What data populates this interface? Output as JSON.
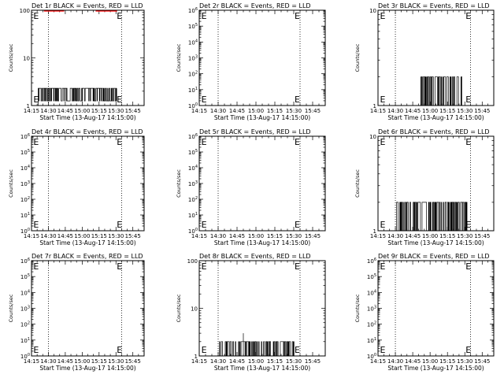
{
  "x_tick_labels": [
    "14:15",
    "14:30",
    "14:45",
    "15:00",
    "15:15",
    "15:30",
    "15:45"
  ],
  "x_axis_label": "Start Time (13-Aug-17 14:15:00)",
  "y_axis_label": "Counts/sec",
  "colors": {
    "events": "#000000",
    "lld": "#ff0000"
  },
  "chart_data": [
    {
      "type": "line",
      "title": "Det 1r BLACK = Events, RED = LLD",
      "ylim": [
        1,
        100
      ],
      "y_scale": "log",
      "y_tick_labels": [
        {
          "v": 1,
          "t": "1"
        },
        {
          "v": 10,
          "t": "10"
        },
        {
          "v": 100,
          "t": "100"
        }
      ],
      "xlim": [
        "14:15",
        "15:55"
      ],
      "markers": [
        {
          "label": "E",
          "x": "14:16"
        },
        {
          "label": "E",
          "x": "15:30"
        }
      ],
      "series": [
        {
          "name": "Events",
          "color": "#000000",
          "baseline": 1.25,
          "hi": 2.3,
          "x_start": "14:21",
          "x_end": "15:31",
          "pattern": "dense"
        },
        {
          "name": "LLD",
          "color": "#ff0000",
          "level": 96,
          "segments": [
            [
              "14:26",
              "14:44"
            ],
            [
              "15:12",
              "15:31"
            ]
          ]
        }
      ],
      "vlines": [
        "14:30",
        "15:35"
      ],
      "grid": true
    },
    {
      "type": "line",
      "title": "Det 2r BLACK = Events, RED = LLD",
      "ylim": [
        1,
        1000000
      ],
      "y_scale": "log",
      "y_tick_labels": [
        {
          "v": 1,
          "b": "10",
          "e": "0"
        },
        {
          "v": 10,
          "b": "10",
          "e": "1"
        },
        {
          "v": 100,
          "b": "10",
          "e": "2"
        },
        {
          "v": 1000,
          "b": "10",
          "e": "3"
        },
        {
          "v": 10000,
          "b": "10",
          "e": "4"
        },
        {
          "v": 100000,
          "b": "10",
          "e": "5"
        },
        {
          "v": 1000000,
          "b": "10",
          "e": "6"
        }
      ],
      "xlim": [
        "14:15",
        "15:55"
      ],
      "markers": [
        {
          "label": "E",
          "x": "14:16"
        },
        {
          "label": "E",
          "x": "15:30"
        }
      ],
      "series": [],
      "vlines": [
        "14:30",
        "15:35"
      ],
      "grid": true
    },
    {
      "type": "line",
      "title": "Det 3r BLACK = Events, RED = LLD",
      "ylim": [
        1,
        10
      ],
      "y_scale": "log",
      "y_tick_labels": [
        {
          "v": 1,
          "t": "1"
        },
        {
          "v": 10,
          "t": "10"
        }
      ],
      "xlim": [
        "14:15",
        "15:55"
      ],
      "markers": [
        {
          "label": "E",
          "x": "14:16"
        },
        {
          "label": "E",
          "x": "15:30"
        }
      ],
      "series": [
        {
          "name": "Events",
          "color": "#000000",
          "baseline": 1,
          "hi": 2,
          "x_start": "14:52",
          "x_end": "15:28",
          "pattern": "sparse"
        }
      ],
      "vlines": [
        "14:30",
        "15:35"
      ],
      "grid": true
    },
    {
      "type": "line",
      "title": "Det 4r BLACK = Events, RED = LLD",
      "ylim": [
        1,
        1000000
      ],
      "y_scale": "log",
      "y_tick_labels": [
        {
          "v": 1,
          "b": "10",
          "e": "0"
        },
        {
          "v": 10,
          "b": "10",
          "e": "1"
        },
        {
          "v": 100,
          "b": "10",
          "e": "2"
        },
        {
          "v": 1000,
          "b": "10",
          "e": "3"
        },
        {
          "v": 10000,
          "b": "10",
          "e": "4"
        },
        {
          "v": 100000,
          "b": "10",
          "e": "5"
        },
        {
          "v": 1000000,
          "b": "10",
          "e": "6"
        }
      ],
      "xlim": [
        "14:15",
        "15:55"
      ],
      "markers": [
        {
          "label": "E",
          "x": "14:16"
        },
        {
          "label": "E",
          "x": "15:30"
        }
      ],
      "series": [],
      "vlines": [
        "14:30",
        "15:35"
      ],
      "grid": true
    },
    {
      "type": "line",
      "title": "Det 5r BLACK = Events, RED = LLD",
      "ylim": [
        1,
        1000000
      ],
      "y_scale": "log",
      "y_tick_labels": [
        {
          "v": 1,
          "b": "10",
          "e": "0"
        },
        {
          "v": 10,
          "b": "10",
          "e": "1"
        },
        {
          "v": 100,
          "b": "10",
          "e": "2"
        },
        {
          "v": 1000,
          "b": "10",
          "e": "3"
        },
        {
          "v": 10000,
          "b": "10",
          "e": "4"
        },
        {
          "v": 100000,
          "b": "10",
          "e": "5"
        },
        {
          "v": 1000000,
          "b": "10",
          "e": "6"
        }
      ],
      "xlim": [
        "14:15",
        "15:55"
      ],
      "markers": [
        {
          "label": "E",
          "x": "14:16"
        },
        {
          "label": "E",
          "x": "15:30"
        }
      ],
      "series": [],
      "vlines": [
        "14:30",
        "15:35"
      ],
      "grid": true
    },
    {
      "type": "line",
      "title": "Det 6r BLACK = Events, RED = LLD",
      "ylim": [
        1,
        10
      ],
      "y_scale": "log",
      "y_tick_labels": [
        {
          "v": 1,
          "t": "1"
        },
        {
          "v": 10,
          "t": "10"
        }
      ],
      "xlim": [
        "14:15",
        "15:55"
      ],
      "markers": [
        {
          "label": "E",
          "x": "14:16"
        },
        {
          "label": "E",
          "x": "15:30"
        }
      ],
      "series": [
        {
          "name": "Events",
          "color": "#000000",
          "baseline": 1,
          "hi": 2,
          "x_start": "14:31",
          "x_end": "15:32",
          "pattern": "sparse"
        }
      ],
      "vlines": [
        "14:30",
        "15:35"
      ],
      "grid": true
    },
    {
      "type": "line",
      "title": "Det 7r BLACK = Events, RED = LLD",
      "ylim": [
        1,
        1000000
      ],
      "y_scale": "log",
      "y_tick_labels": [
        {
          "v": 1,
          "b": "10",
          "e": "0"
        },
        {
          "v": 10,
          "b": "10",
          "e": "1"
        },
        {
          "v": 100,
          "b": "10",
          "e": "2"
        },
        {
          "v": 1000,
          "b": "10",
          "e": "3"
        },
        {
          "v": 10000,
          "b": "10",
          "e": "4"
        },
        {
          "v": 100000,
          "b": "10",
          "e": "5"
        },
        {
          "v": 1000000,
          "b": "10",
          "e": "6"
        }
      ],
      "xlim": [
        "14:15",
        "15:55"
      ],
      "markers": [
        {
          "label": "E",
          "x": "14:16"
        },
        {
          "label": "E",
          "x": "15:30"
        }
      ],
      "series": [],
      "vlines": [
        "14:30",
        "15:35"
      ],
      "grid": true
    },
    {
      "type": "line",
      "title": "Det 8r BLACK = Events, RED = LLD",
      "ylim": [
        1,
        100
      ],
      "y_scale": "log",
      "y_tick_labels": [
        {
          "v": 1,
          "t": "1"
        },
        {
          "v": 10,
          "t": "10"
        },
        {
          "v": 100,
          "t": "100"
        }
      ],
      "xlim": [
        "14:15",
        "15:55"
      ],
      "markers": [
        {
          "label": "E",
          "x": "14:16"
        },
        {
          "label": "E",
          "x": "15:30"
        }
      ],
      "series": [
        {
          "name": "Events",
          "color": "#000000",
          "baseline": 1,
          "hi": 2,
          "x_start": "14:30",
          "x_end": "15:31",
          "pattern": "sparse",
          "spike": {
            "x": "14:50",
            "y": 3
          }
        }
      ],
      "vlines": [
        "14:30",
        "15:35"
      ],
      "grid": true
    },
    {
      "type": "line",
      "title": "Det 9r BLACK = Events, RED = LLD",
      "ylim": [
        1,
        1000000
      ],
      "y_scale": "log",
      "y_tick_labels": [
        {
          "v": 1,
          "b": "10",
          "e": "0"
        },
        {
          "v": 10,
          "b": "10",
          "e": "1"
        },
        {
          "v": 100,
          "b": "10",
          "e": "2"
        },
        {
          "v": 1000,
          "b": "10",
          "e": "3"
        },
        {
          "v": 10000,
          "b": "10",
          "e": "4"
        },
        {
          "v": 100000,
          "b": "10",
          "e": "5"
        },
        {
          "v": 1000000,
          "b": "10",
          "e": "6"
        }
      ],
      "xlim": [
        "14:15",
        "15:55"
      ],
      "markers": [
        {
          "label": "E",
          "x": "14:16"
        },
        {
          "label": "E",
          "x": "15:30"
        }
      ],
      "series": [],
      "vlines": [
        "14:30",
        "15:35"
      ],
      "grid": true
    }
  ]
}
